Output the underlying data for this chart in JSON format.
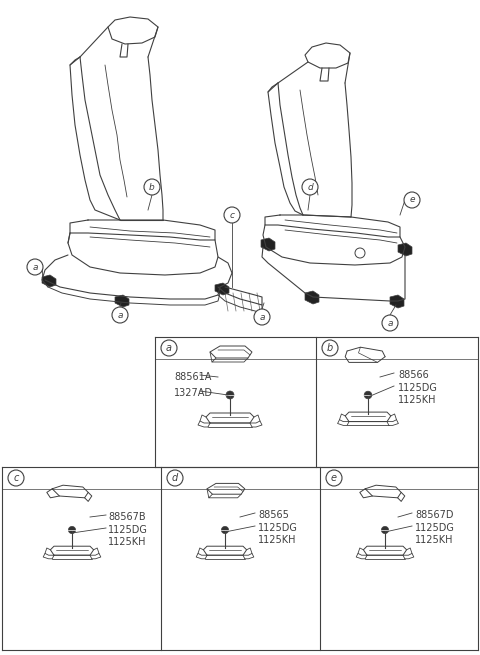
{
  "bg_color": "#ffffff",
  "line_color": "#404040",
  "parts_table": {
    "cell_a": {
      "label": "a",
      "part1": "88561A",
      "part2": "1327AD"
    },
    "cell_b": {
      "label": "b",
      "part1": "88566",
      "part2": "1125DG",
      "part3": "1125KH"
    },
    "cell_c": {
      "label": "c",
      "part1": "88567B",
      "part2": "1125DG",
      "part3": "1125KH"
    },
    "cell_d": {
      "label": "d",
      "part1": "88565",
      "part2": "1125DG",
      "part3": "1125KH"
    },
    "cell_e": {
      "label": "e",
      "part1": "88567D",
      "part2": "1125DG",
      "part3": "1125KH"
    }
  },
  "font_size_part": 7,
  "font_size_callout": 6.5
}
